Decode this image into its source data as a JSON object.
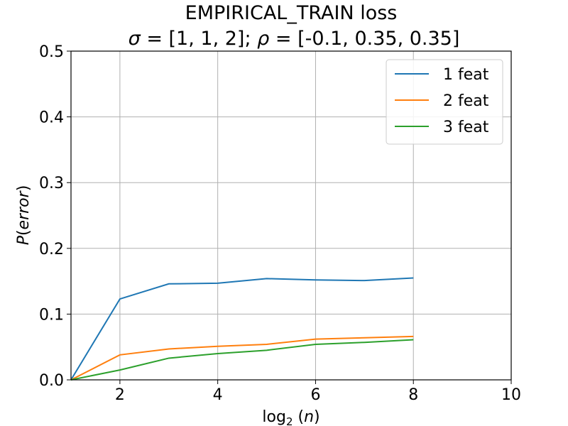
{
  "chart_data": {
    "type": "line",
    "title_line1": "EMPIRICAL_TRAIN loss",
    "title_sigma_sym": "σ",
    "title_sigma_val": " = [1, 1, 2];  ",
    "title_rho_sym": "ρ",
    "title_rho_val": " = [-0.1, 0.35, 0.35]",
    "xlabel_prefix": "log",
    "xlabel_sub": "2",
    "xlabel_arg_open": " (",
    "xlabel_var": "n",
    "xlabel_arg_close": ")",
    "ylabel_var1": "P",
    "ylabel_paren_open": "(",
    "ylabel_var2": "error",
    "ylabel_paren_close": ")",
    "xlim": [
      1,
      10
    ],
    "ylim": [
      0,
      0.5
    ],
    "xticks": [
      2,
      4,
      6,
      8,
      10
    ],
    "xtick_labels": [
      "2",
      "4",
      "6",
      "8",
      "10"
    ],
    "yticks": [
      0.0,
      0.1,
      0.2,
      0.3,
      0.4,
      0.5
    ],
    "ytick_labels": [
      "0.0",
      "0.1",
      "0.2",
      "0.3",
      "0.4",
      "0.5"
    ],
    "grid": true,
    "legend_position": "top-right",
    "x": [
      1,
      2,
      3,
      4,
      5,
      6,
      7,
      8
    ],
    "series": [
      {
        "name": "1 feat",
        "color": "#1f77b4",
        "values": [
          0.0,
          0.123,
          0.146,
          0.147,
          0.154,
          0.152,
          0.151,
          0.155
        ]
      },
      {
        "name": "2 feat",
        "color": "#ff7f0e",
        "values": [
          0.0,
          0.038,
          0.047,
          0.051,
          0.054,
          0.062,
          0.064,
          0.066
        ]
      },
      {
        "name": "3 feat",
        "color": "#2ca02c",
        "values": [
          0.0,
          0.015,
          0.033,
          0.04,
          0.045,
          0.054,
          0.057,
          0.061
        ]
      }
    ]
  }
}
